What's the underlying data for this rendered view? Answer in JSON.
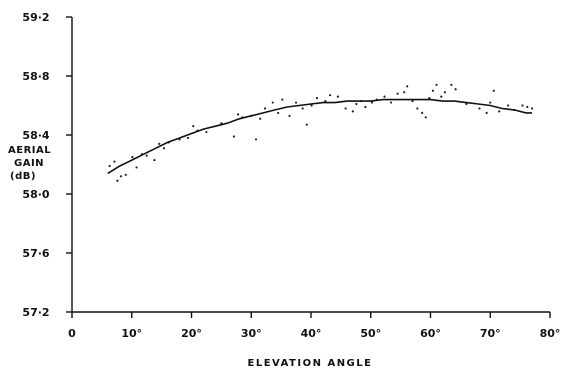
{
  "chart_data": {
    "type": "scatter",
    "xlabel": "ELEVATION ANGLE",
    "ylabel_lines": [
      "AERIAL",
      "GAIN",
      "(dB)"
    ],
    "xlim": [
      0,
      80
    ],
    "ylim": [
      57.2,
      59.2
    ],
    "x_ticks": [
      0,
      10,
      20,
      30,
      40,
      50,
      60,
      70,
      80
    ],
    "x_tick_labels": [
      "0",
      "10°",
      "20°",
      "30°",
      "40°",
      "50°",
      "60°",
      "70°",
      "80°"
    ],
    "y_ticks": [
      57.2,
      57.6,
      58.0,
      58.4,
      58.8,
      59.2
    ],
    "y_tick_labels": [
      "57·2",
      "57·6",
      "58·0",
      "58·4",
      "58·8",
      "59·2"
    ],
    "grid": false,
    "series": [
      {
        "kind": "points",
        "x": [
          6.3,
          7.1,
          7.6,
          8.2,
          9.0,
          10.1,
          10.8,
          11.7,
          12.5,
          13.8,
          14.6,
          15.4,
          16.2,
          18.0,
          19.4,
          20.3,
          21.0,
          22.5,
          25.0,
          27.1,
          27.8,
          28.5,
          30.0,
          30.8,
          31.5,
          32.3,
          33.6,
          34.5,
          35.2,
          36.4,
          37.5,
          38.6,
          39.3,
          40.1,
          41.0,
          42.4,
          43.2,
          44.5,
          45.8,
          47.0,
          47.6,
          48.4,
          49.1,
          50.2,
          51.0,
          52.3,
          53.4,
          54.5,
          55.6,
          56.1,
          57.0,
          57.8,
          58.6,
          59.2,
          59.8,
          60.4,
          61.0,
          61.8,
          62.4,
          63.5,
          64.2,
          66.0,
          68.2,
          69.4,
          70.0,
          70.6,
          71.5,
          73.0,
          74.0,
          75.4,
          76.2,
          77.0
        ],
        "y": [
          58.19,
          58.22,
          58.09,
          58.12,
          58.13,
          58.25,
          58.18,
          58.27,
          58.26,
          58.23,
          58.34,
          58.31,
          58.35,
          58.37,
          58.38,
          58.46,
          58.43,
          58.42,
          58.48,
          58.39,
          58.54,
          58.52,
          58.53,
          58.37,
          58.51,
          58.58,
          58.62,
          58.55,
          58.64,
          58.53,
          58.62,
          58.58,
          58.47,
          58.6,
          58.65,
          58.63,
          58.67,
          58.66,
          58.58,
          58.56,
          58.61,
          58.63,
          58.59,
          58.62,
          58.64,
          58.66,
          58.62,
          58.68,
          58.69,
          58.73,
          58.63,
          58.58,
          58.55,
          58.52,
          58.65,
          58.7,
          58.74,
          58.66,
          58.69,
          58.74,
          58.71,
          58.61,
          58.58,
          58.55,
          58.62,
          58.7,
          58.56,
          58.6,
          58.57,
          58.6,
          58.59,
          58.58
        ]
      },
      {
        "kind": "fitted-curve",
        "x": [
          6,
          8,
          10,
          12,
          14,
          16,
          18,
          20,
          22,
          24,
          26,
          28,
          30,
          32,
          34,
          36,
          38,
          40,
          42,
          44,
          46,
          48,
          50,
          52,
          54,
          56,
          58,
          60,
          62,
          64,
          66,
          68,
          70,
          72,
          74,
          76,
          77
        ],
        "y": [
          58.14,
          58.19,
          58.23,
          58.27,
          58.31,
          58.35,
          58.38,
          58.41,
          58.44,
          58.46,
          58.48,
          58.51,
          58.53,
          58.55,
          58.57,
          58.59,
          58.6,
          58.61,
          58.62,
          58.62,
          58.63,
          58.63,
          58.63,
          58.64,
          58.64,
          58.64,
          58.64,
          58.64,
          58.63,
          58.63,
          58.62,
          58.61,
          58.6,
          58.58,
          58.57,
          58.55,
          58.55
        ]
      }
    ]
  }
}
